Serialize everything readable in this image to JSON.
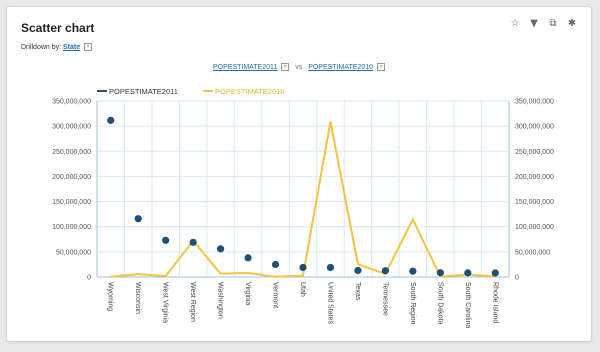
{
  "widget": {
    "title": "Scatter chart",
    "drilldown_label": "Drilldown by:",
    "drilldown_value": "State",
    "measure_1": "POPESTIMATE2011",
    "measure_sep": "vs",
    "measure_2": "POPESTIMATE2010",
    "remove_icon": "x-icon",
    "tool_icons": [
      "pin-icon",
      "filter-icon",
      "export-icon",
      "settings-icon"
    ]
  },
  "colors": {
    "series_2011": "#1f4e79",
    "series_2010": "#f2c442",
    "grid": "#d9e7ef",
    "axis": "#9fc3d4"
  },
  "chart_data": {
    "type": "scatter",
    "categories": [
      "Wyoming",
      "Wisconsin",
      "West Virginia",
      "West Region",
      "Washington",
      "Virginia",
      "Vermont",
      "Utah",
      "United States",
      "Texas",
      "Tennessee",
      "South Region",
      "South Dakota",
      "South Carolina",
      "Rhode Island"
    ],
    "series": [
      {
        "name": "POPESTIMATE2011",
        "style": "points",
        "values": [
          311500000,
          116000000,
          73000000,
          69000000,
          56000000,
          38000000,
          25000000,
          19000000,
          19000000,
          13000000,
          12500000,
          11500000,
          8500000,
          8200000,
          8000000
        ]
      },
      {
        "name": "POPESTIMATE2010",
        "style": "line",
        "values": [
          570000,
          5700000,
          1850000,
          72000000,
          6800000,
          8000000,
          625000,
          2800000,
          309000000,
          25200000,
          6350000,
          114500000,
          815000,
          4600000,
          1050000
        ]
      }
    ],
    "ylim": [
      0,
      350000000
    ],
    "yticks": [
      "0",
      "50,000,000",
      "100,000,000",
      "150,000,000",
      "200,000,000",
      "250,000,000",
      "300,000,000",
      "350,000,000"
    ],
    "grid": true,
    "legend": "top-left",
    "secondary_axis": "right"
  }
}
